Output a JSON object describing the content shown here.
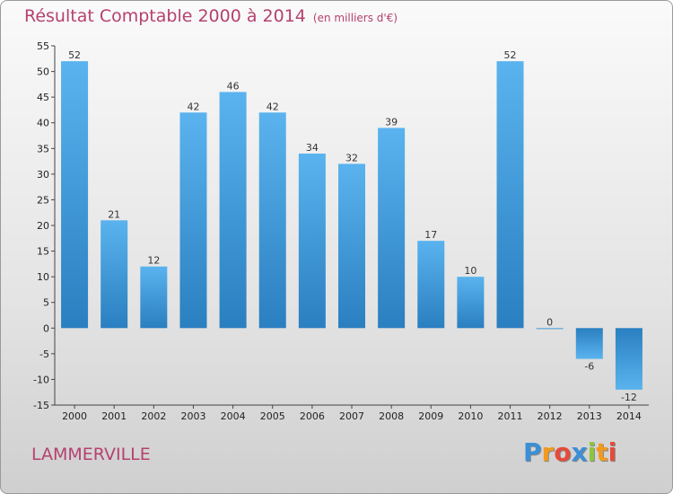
{
  "chart_data": {
    "type": "bar",
    "title": "Résultat Comptable 2000 à 2014",
    "subtitle": "(en milliers d'€)",
    "categories": [
      "2000",
      "2001",
      "2002",
      "2003",
      "2004",
      "2005",
      "2006",
      "2007",
      "2008",
      "2009",
      "2010",
      "2011",
      "2012",
      "2013",
      "2014"
    ],
    "values": [
      52,
      21,
      12,
      42,
      46,
      42,
      34,
      32,
      39,
      17,
      10,
      52,
      0,
      -6,
      -12
    ],
    "data_labels": [
      "52",
      "21",
      "12",
      "42",
      "46",
      "42",
      "34",
      "32",
      "39",
      "17",
      "10",
      "52",
      "0",
      "-6",
      "-12"
    ],
    "ylim": [
      -15,
      55
    ],
    "yticks": [
      55,
      50,
      45,
      40,
      35,
      30,
      25,
      20,
      15,
      10,
      5,
      0,
      -5,
      -10,
      -15
    ],
    "ytick_labels": [
      "55",
      "50",
      "45",
      "40",
      "35",
      "30",
      "25",
      "20",
      "15",
      "10",
      "5",
      "0",
      "-5",
      "-10",
      "-15"
    ],
    "grid": false,
    "bar_color": "#3a96d8"
  },
  "place_name": "LAMMERVILLE",
  "logo": {
    "letters": [
      "P",
      "r",
      "o",
      "x",
      "i",
      "t",
      "i"
    ],
    "colors": [
      "#3b8fd6",
      "#f29a1e",
      "#e44b3a",
      "#3b8fd6",
      "#8cc63f",
      "#f29a1e",
      "#e44b3a"
    ]
  }
}
